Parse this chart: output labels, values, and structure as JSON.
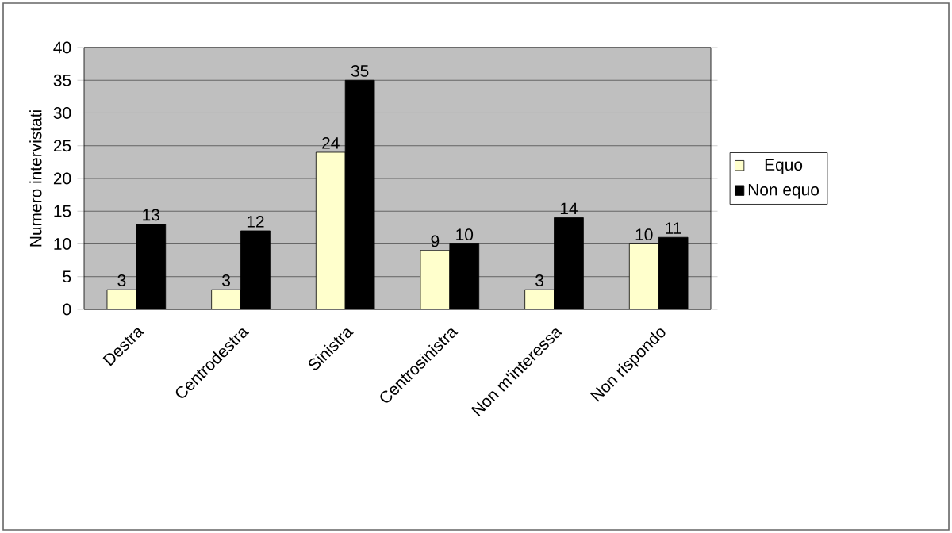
{
  "chart_data": {
    "type": "bar",
    "ylabel": "Numero intervistati",
    "categories": [
      "Destra",
      "Centrodestra",
      "Sinistra",
      "Centrosinistra",
      "Non m'interessa",
      "Non rispondo"
    ],
    "series": [
      {
        "name": "Equo",
        "color": "#ffffcc",
        "values": [
          3,
          3,
          24,
          9,
          3,
          10
        ]
      },
      {
        "name": "Non equo",
        "color": "#000000",
        "values": [
          13,
          12,
          35,
          10,
          14,
          11
        ]
      }
    ],
    "ylim": [
      0,
      40
    ],
    "yticks": [
      0,
      5,
      10,
      15,
      20,
      25,
      30,
      35,
      40
    ],
    "grid": "y",
    "legend": "right",
    "data_labels": true
  }
}
